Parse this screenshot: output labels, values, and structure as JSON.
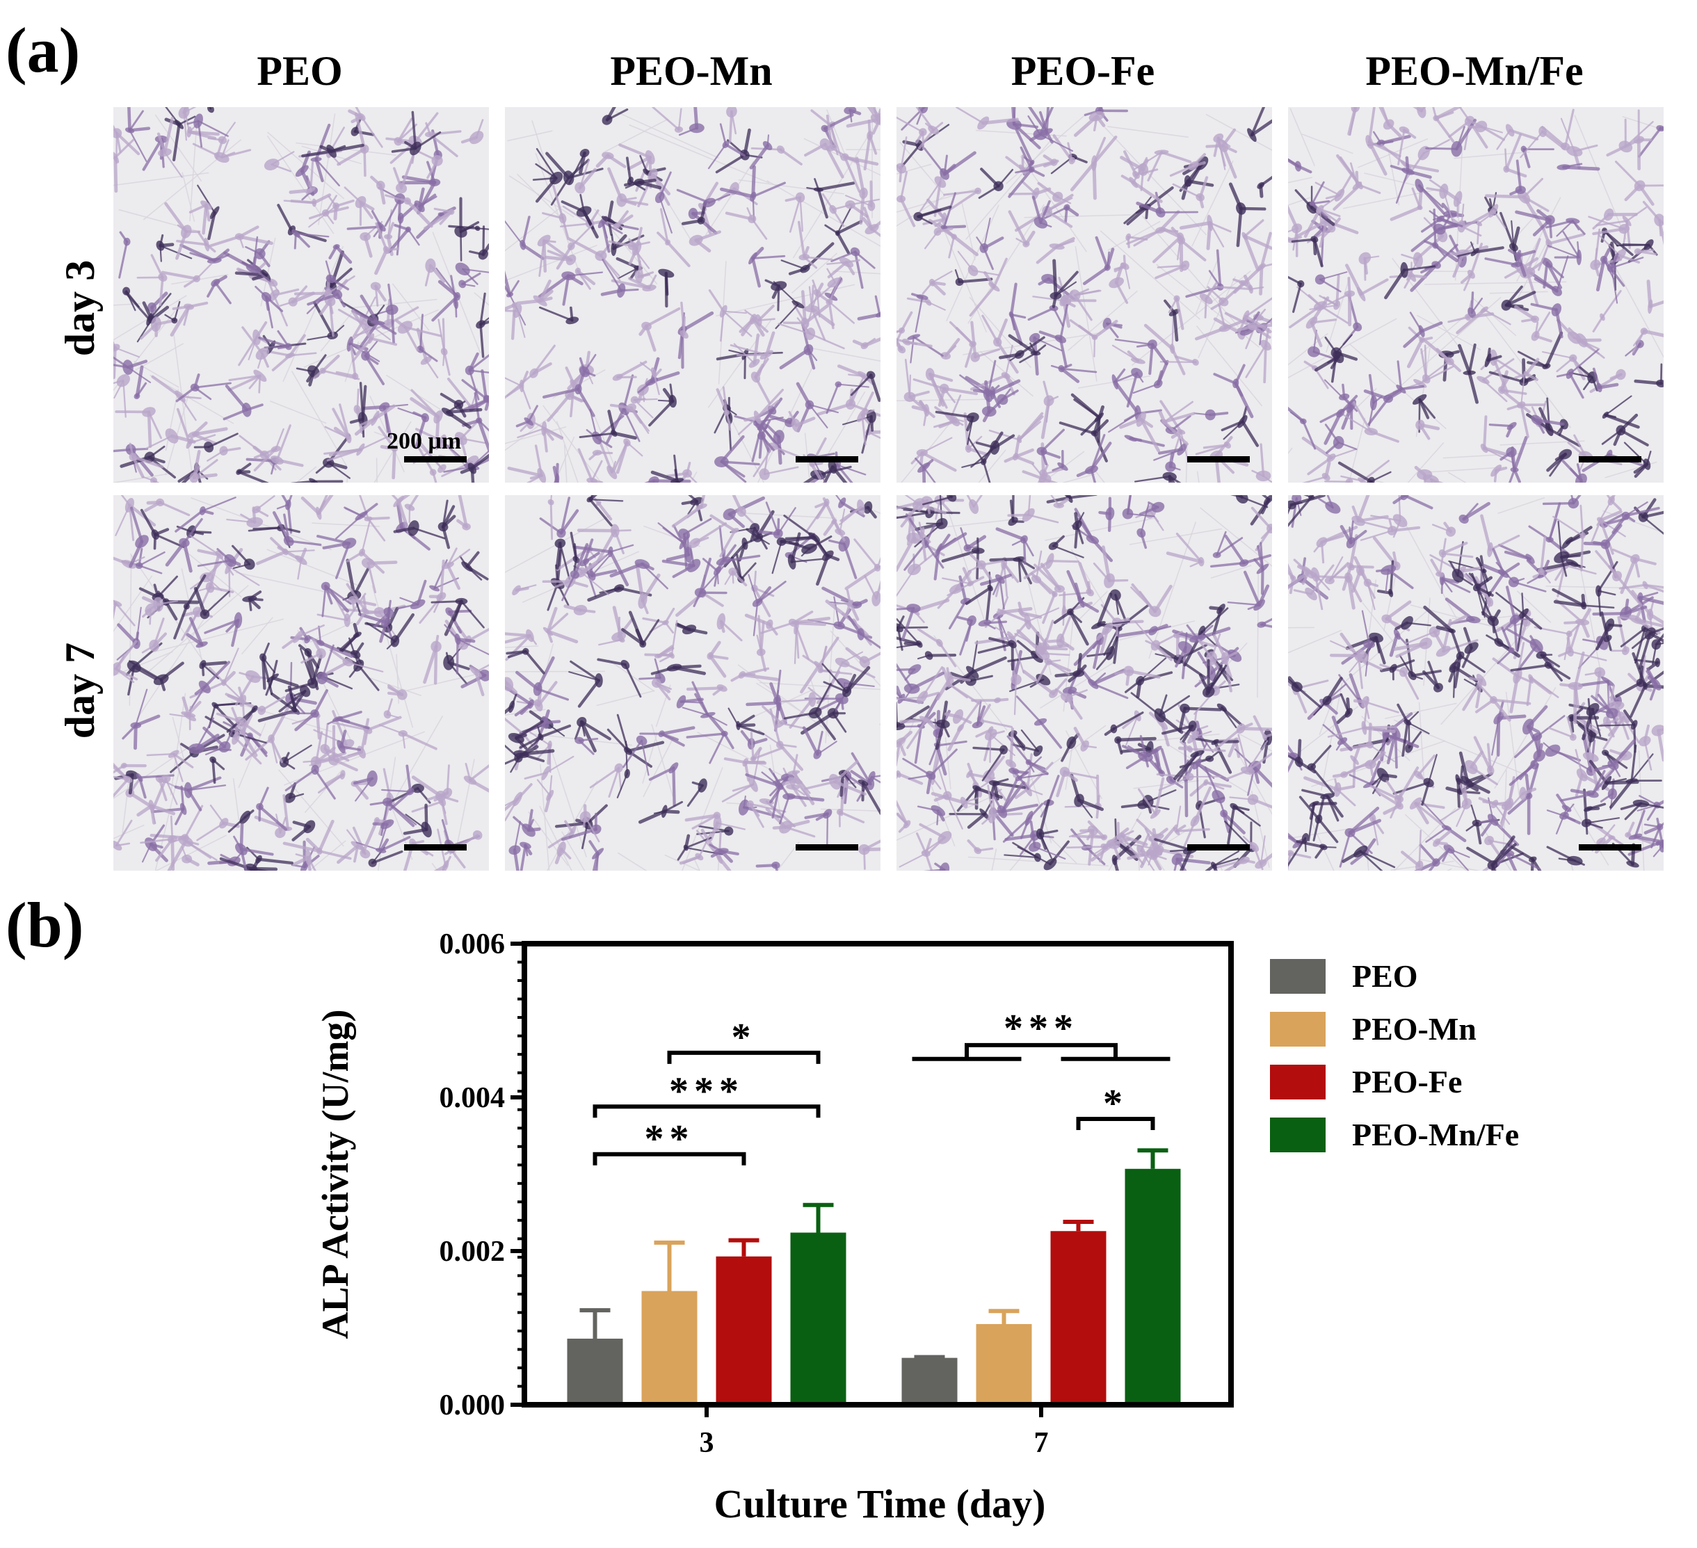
{
  "panel_a": {
    "label": "(a)",
    "columns": [
      "PEO",
      "PEO-Mn",
      "PEO-Fe",
      "PEO-Mn/Fe"
    ],
    "rows": [
      "day 3",
      "day 7"
    ],
    "scale_label": "200 μm",
    "stain_colors": {
      "background": "#ecebee",
      "light": "#b9a6c9",
      "medium": "#8a6fa6",
      "dark": "#3f2f5a"
    },
    "stain_density": [
      [
        0.55,
        0.5,
        0.5,
        0.55
      ],
      [
        0.65,
        0.6,
        0.95,
        0.9
      ]
    ]
  },
  "panel_b": {
    "label": "(b)"
  },
  "chart_data": {
    "type": "bar",
    "title": "",
    "xlabel": "Culture Time (day)",
    "ylabel": "ALP Activity (U/mg)",
    "categories": [
      "3",
      "7"
    ],
    "ylim": [
      0,
      0.006
    ],
    "yticks": [
      "0.000",
      "0.002",
      "0.004",
      "0.006"
    ],
    "grid": false,
    "legend_position": "right",
    "series": [
      {
        "name": "PEO",
        "color": "#63645f",
        "values": [
          0.00086,
          0.00061
        ],
        "errors": [
          0.00037,
          1e-05
        ]
      },
      {
        "name": "PEO-Mn",
        "color": "#d9a35b",
        "values": [
          0.00148,
          0.00105
        ],
        "errors": [
          0.00063,
          0.00017
        ]
      },
      {
        "name": "PEO-Fe",
        "color": "#b30d0d",
        "values": [
          0.00193,
          0.00226
        ],
        "errors": [
          0.00021,
          0.00012
        ]
      },
      {
        "name": "PEO-Mn/Fe",
        "color": "#0a6012",
        "values": [
          0.00224,
          0.00307
        ],
        "errors": [
          0.00036,
          0.00024
        ]
      }
    ],
    "significance": [
      {
        "category": "3",
        "from": "PEO",
        "to": "PEO-Fe",
        "y": 0.00326,
        "label": "**"
      },
      {
        "category": "3",
        "from": "PEO",
        "to": "PEO-Mn/Fe",
        "y": 0.00388,
        "label": "***"
      },
      {
        "category": "3",
        "from": "PEO-Mn",
        "to": "PEO-Mn/Fe",
        "y": 0.00458,
        "label": "*"
      },
      {
        "category": "7",
        "from": "PEO-Fe",
        "to": "PEO-Mn/Fe",
        "y": 0.00372,
        "label": "*"
      }
    ],
    "group_significance": {
      "category": "7",
      "left_group": [
        "PEO",
        "PEO-Mn"
      ],
      "right_group": [
        "PEO-Fe",
        "PEO-Mn/Fe"
      ],
      "y": 0.0045,
      "top": 0.00468,
      "label": "***"
    }
  }
}
